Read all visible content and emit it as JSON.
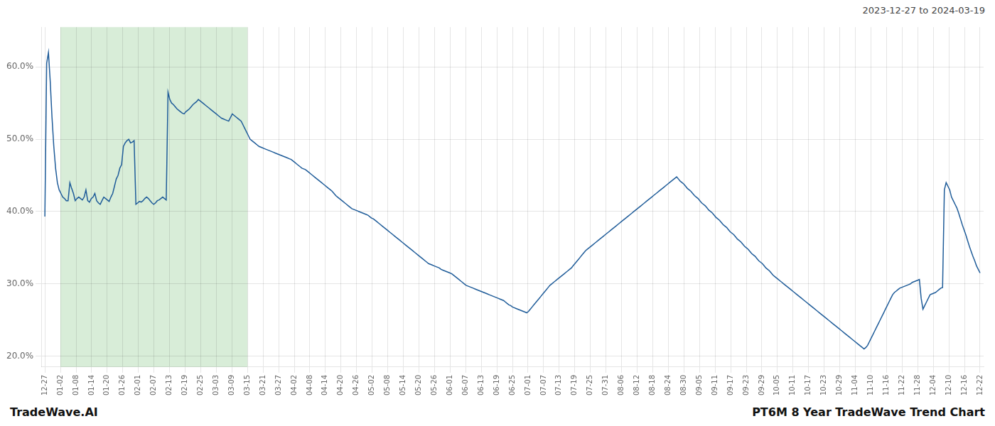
{
  "chart_data": {
    "type": "line",
    "title": "PT6M 8 Year TradeWave Trend Chart",
    "subtitle": "2023-12-27 to 2024-03-19",
    "annotations": [
      "TradeWave.AI"
    ],
    "color": "#1f5c99",
    "highlight_x": [
      8.7333,
      113.5333
    ],
    "highlight_color": "#d8edd8",
    "grid": true,
    "xlim": [
      -2,
      526
    ],
    "xticks": [
      {
        "value": 0,
        "label": "12-27"
      },
      {
        "value": 8.7333,
        "label": "01-02"
      },
      {
        "value": 17.4667,
        "label": "01-08"
      },
      {
        "value": 26.2,
        "label": "01-14"
      },
      {
        "value": 34.9333,
        "label": "01-20"
      },
      {
        "value": 43.6667,
        "label": "01-26"
      },
      {
        "value": 52.4,
        "label": "02-01"
      },
      {
        "value": 61.1333,
        "label": "02-07"
      },
      {
        "value": 69.8667,
        "label": "02-13"
      },
      {
        "value": 78.6,
        "label": "02-19"
      },
      {
        "value": 87.3333,
        "label": "02-25"
      },
      {
        "value": 96.0667,
        "label": "03-03"
      },
      {
        "value": 104.8,
        "label": "03-09"
      },
      {
        "value": 113.5333,
        "label": "03-15"
      },
      {
        "value": 122.2667,
        "label": "03-21"
      },
      {
        "value": 131,
        "label": "03-27"
      },
      {
        "value": 139.7333,
        "label": "04-02"
      },
      {
        "value": 148.4667,
        "label": "04-08"
      },
      {
        "value": 157.2,
        "label": "04-14"
      },
      {
        "value": 165.9333,
        "label": "04-20"
      },
      {
        "value": 174.6667,
        "label": "04-26"
      },
      {
        "value": 183.4,
        "label": "05-02"
      },
      {
        "value": 192.1333,
        "label": "05-08"
      },
      {
        "value": 200.8667,
        "label": "05-14"
      },
      {
        "value": 209.6,
        "label": "05-20"
      },
      {
        "value": 218.3333,
        "label": "05-26"
      },
      {
        "value": 227.0667,
        "label": "06-01"
      },
      {
        "value": 235.8,
        "label": "06-07"
      },
      {
        "value": 244.5333,
        "label": "06-13"
      },
      {
        "value": 253.2667,
        "label": "06-19"
      },
      {
        "value": 262,
        "label": "06-25"
      },
      {
        "value": 270.7333,
        "label": "07-01"
      },
      {
        "value": 279.4667,
        "label": "07-07"
      },
      {
        "value": 288.2,
        "label": "07-13"
      },
      {
        "value": 296.9333,
        "label": "07-19"
      },
      {
        "value": 305.6667,
        "label": "07-25"
      },
      {
        "value": 314.4,
        "label": "07-31"
      },
      {
        "value": 323.1333,
        "label": "08-06"
      },
      {
        "value": 331.8667,
        "label": "08-12"
      },
      {
        "value": 340.6,
        "label": "08-18"
      },
      {
        "value": 349.3333,
        "label": "08-24"
      },
      {
        "value": 358.0667,
        "label": "08-30"
      },
      {
        "value": 366.8,
        "label": "09-05"
      },
      {
        "value": 375.5333,
        "label": "09-11"
      },
      {
        "value": 384.2667,
        "label": "09-17"
      },
      {
        "value": 393,
        "label": "09-23"
      },
      {
        "value": 401.7333,
        "label": "09-29"
      },
      {
        "value": 410.4667,
        "label": "10-05"
      },
      {
        "value": 419.2,
        "label": "10-11"
      },
      {
        "value": 427.9333,
        "label": "10-17"
      },
      {
        "value": 436.6667,
        "label": "10-23"
      },
      {
        "value": 445.4,
        "label": "10-29"
      },
      {
        "value": 454.1333,
        "label": "11-04"
      },
      {
        "value": 462.8667,
        "label": "11-10"
      },
      {
        "value": 471.6,
        "label": "11-16"
      },
      {
        "value": 480.3333,
        "label": "11-22"
      },
      {
        "value": 489.0667,
        "label": "11-28"
      },
      {
        "value": 497.8,
        "label": "12-04"
      },
      {
        "value": 506.5333,
        "label": "12-10"
      },
      {
        "value": 515.2667,
        "label": "12-16"
      },
      {
        "value": 524,
        "label": "12-22"
      }
    ],
    "ylim": [
      0.185,
      0.655
    ],
    "yticks": [
      {
        "value": 0.2,
        "label": "20.0%"
      },
      {
        "value": 0.3,
        "label": "30.0%"
      },
      {
        "value": 0.4,
        "label": "40.0%"
      },
      {
        "value": 0.5,
        "label": "50.0%"
      },
      {
        "value": 0.6,
        "label": "60.0%"
      }
    ],
    "values": [
      0.393,
      0.605,
      0.62,
      0.58,
      0.53,
      0.49,
      0.46,
      0.44,
      0.43,
      0.425,
      0.42,
      0.418,
      0.415,
      0.415,
      0.44,
      0.432,
      0.425,
      0.415,
      0.418,
      0.42,
      0.418,
      0.416,
      0.42,
      0.43,
      0.415,
      0.413,
      0.418,
      0.42,
      0.425,
      0.415,
      0.412,
      0.41,
      0.415,
      0.42,
      0.418,
      0.416,
      0.414,
      0.42,
      0.425,
      0.435,
      0.445,
      0.45,
      0.46,
      0.465,
      0.49,
      0.495,
      0.498,
      0.5,
      0.495,
      0.496,
      0.498,
      0.41,
      0.412,
      0.414,
      0.413,
      0.415,
      0.418,
      0.42,
      0.418,
      0.415,
      0.412,
      0.41,
      0.412,
      0.415,
      0.416,
      0.418,
      0.42,
      0.418,
      0.416,
      0.565,
      0.555,
      0.55,
      0.548,
      0.545,
      0.542,
      0.54,
      0.538,
      0.536,
      0.535,
      0.538,
      0.54,
      0.542,
      0.545,
      0.548,
      0.55,
      0.552,
      0.555,
      0.553,
      0.551,
      0.549,
      0.547,
      0.545,
      0.543,
      0.541,
      0.539,
      0.537,
      0.535,
      0.533,
      0.531,
      0.529,
      0.528,
      0.527,
      0.526,
      0.525,
      0.53,
      0.535,
      0.533,
      0.531,
      0.529,
      0.527,
      0.525,
      0.52,
      0.515,
      0.51,
      0.505,
      0.5,
      0.498,
      0.496,
      0.494,
      0.492,
      0.49,
      0.489,
      0.488,
      0.487,
      0.486,
      0.485,
      0.484,
      0.483,
      0.482,
      0.481,
      0.48,
      0.479,
      0.478,
      0.477,
      0.476,
      0.475,
      0.474,
      0.473,
      0.472,
      0.47,
      0.468,
      0.466,
      0.464,
      0.462,
      0.46,
      0.459,
      0.458,
      0.456,
      0.454,
      0.452,
      0.45,
      0.448,
      0.446,
      0.444,
      0.442,
      0.44,
      0.438,
      0.436,
      0.434,
      0.432,
      0.43,
      0.428,
      0.425,
      0.422,
      0.42,
      0.418,
      0.416,
      0.414,
      0.412,
      0.41,
      0.408,
      0.406,
      0.404,
      0.403,
      0.402,
      0.401,
      0.4,
      0.399,
      0.398,
      0.397,
      0.396,
      0.395,
      0.393,
      0.391,
      0.39,
      0.388,
      0.386,
      0.384,
      0.382,
      0.38,
      0.378,
      0.376,
      0.374,
      0.372,
      0.37,
      0.368,
      0.366,
      0.364,
      0.362,
      0.36,
      0.358,
      0.356,
      0.354,
      0.352,
      0.35,
      0.348,
      0.346,
      0.344,
      0.342,
      0.34,
      0.338,
      0.336,
      0.334,
      0.332,
      0.33,
      0.328,
      0.327,
      0.326,
      0.325,
      0.324,
      0.323,
      0.322,
      0.32,
      0.319,
      0.318,
      0.317,
      0.316,
      0.315,
      0.314,
      0.312,
      0.31,
      0.308,
      0.306,
      0.304,
      0.302,
      0.3,
      0.298,
      0.297,
      0.296,
      0.295,
      0.294,
      0.293,
      0.292,
      0.291,
      0.29,
      0.289,
      0.288,
      0.287,
      0.286,
      0.285,
      0.284,
      0.283,
      0.282,
      0.281,
      0.28,
      0.279,
      0.278,
      0.277,
      0.275,
      0.273,
      0.271,
      0.27,
      0.268,
      0.267,
      0.266,
      0.265,
      0.264,
      0.263,
      0.262,
      0.261,
      0.26,
      0.262,
      0.265,
      0.268,
      0.271,
      0.274,
      0.277,
      0.28,
      0.283,
      0.286,
      0.289,
      0.292,
      0.295,
      0.298,
      0.3,
      0.302,
      0.304,
      0.306,
      0.308,
      0.31,
      0.312,
      0.314,
      0.316,
      0.318,
      0.32,
      0.322,
      0.325,
      0.328,
      0.331,
      0.334,
      0.337,
      0.34,
      0.343,
      0.346,
      0.348,
      0.35,
      0.352,
      0.354,
      0.356,
      0.358,
      0.36,
      0.362,
      0.364,
      0.366,
      0.368,
      0.37,
      0.372,
      0.374,
      0.376,
      0.378,
      0.38,
      0.382,
      0.384,
      0.386,
      0.388,
      0.39,
      0.392,
      0.394,
      0.396,
      0.398,
      0.4,
      0.402,
      0.404,
      0.406,
      0.408,
      0.41,
      0.412,
      0.414,
      0.416,
      0.418,
      0.42,
      0.422,
      0.424,
      0.426,
      0.428,
      0.43,
      0.432,
      0.434,
      0.436,
      0.438,
      0.44,
      0.442,
      0.444,
      0.446,
      0.448,
      0.445,
      0.442,
      0.44,
      0.438,
      0.435,
      0.432,
      0.43,
      0.428,
      0.425,
      0.422,
      0.42,
      0.418,
      0.415,
      0.412,
      0.41,
      0.408,
      0.405,
      0.402,
      0.4,
      0.398,
      0.395,
      0.392,
      0.39,
      0.388,
      0.385,
      0.382,
      0.38,
      0.378,
      0.375,
      0.372,
      0.37,
      0.368,
      0.365,
      0.362,
      0.36,
      0.358,
      0.355,
      0.352,
      0.35,
      0.348,
      0.345,
      0.342,
      0.34,
      0.338,
      0.335,
      0.332,
      0.33,
      0.328,
      0.325,
      0.322,
      0.32,
      0.318,
      0.315,
      0.312,
      0.31,
      0.308,
      0.306,
      0.304,
      0.302,
      0.3,
      0.298,
      0.296,
      0.294,
      0.292,
      0.29,
      0.288,
      0.286,
      0.284,
      0.282,
      0.28,
      0.278,
      0.276,
      0.274,
      0.272,
      0.27,
      0.268,
      0.266,
      0.264,
      0.262,
      0.26,
      0.258,
      0.256,
      0.254,
      0.252,
      0.25,
      0.248,
      0.246,
      0.244,
      0.242,
      0.24,
      0.238,
      0.236,
      0.234,
      0.232,
      0.23,
      0.228,
      0.226,
      0.224,
      0.222,
      0.22,
      0.218,
      0.216,
      0.214,
      0.212,
      0.21,
      0.212,
      0.215,
      0.22,
      0.225,
      0.23,
      0.235,
      0.24,
      0.245,
      0.25,
      0.255,
      0.26,
      0.265,
      0.27,
      0.275,
      0.28,
      0.285,
      0.288,
      0.29,
      0.292,
      0.294,
      0.295,
      0.296,
      0.297,
      0.298,
      0.299,
      0.3,
      0.302,
      0.303,
      0.304,
      0.305,
      0.306,
      0.28,
      0.265,
      0.27,
      0.275,
      0.28,
      0.285,
      0.286,
      0.287,
      0.288,
      0.29,
      0.292,
      0.294,
      0.295,
      0.43,
      0.44,
      0.435,
      0.43,
      0.42,
      0.415,
      0.41,
      0.405,
      0.398,
      0.39,
      0.382,
      0.375,
      0.368,
      0.36,
      0.352,
      0.345,
      0.338,
      0.332,
      0.325,
      0.32,
      0.315
    ]
  }
}
